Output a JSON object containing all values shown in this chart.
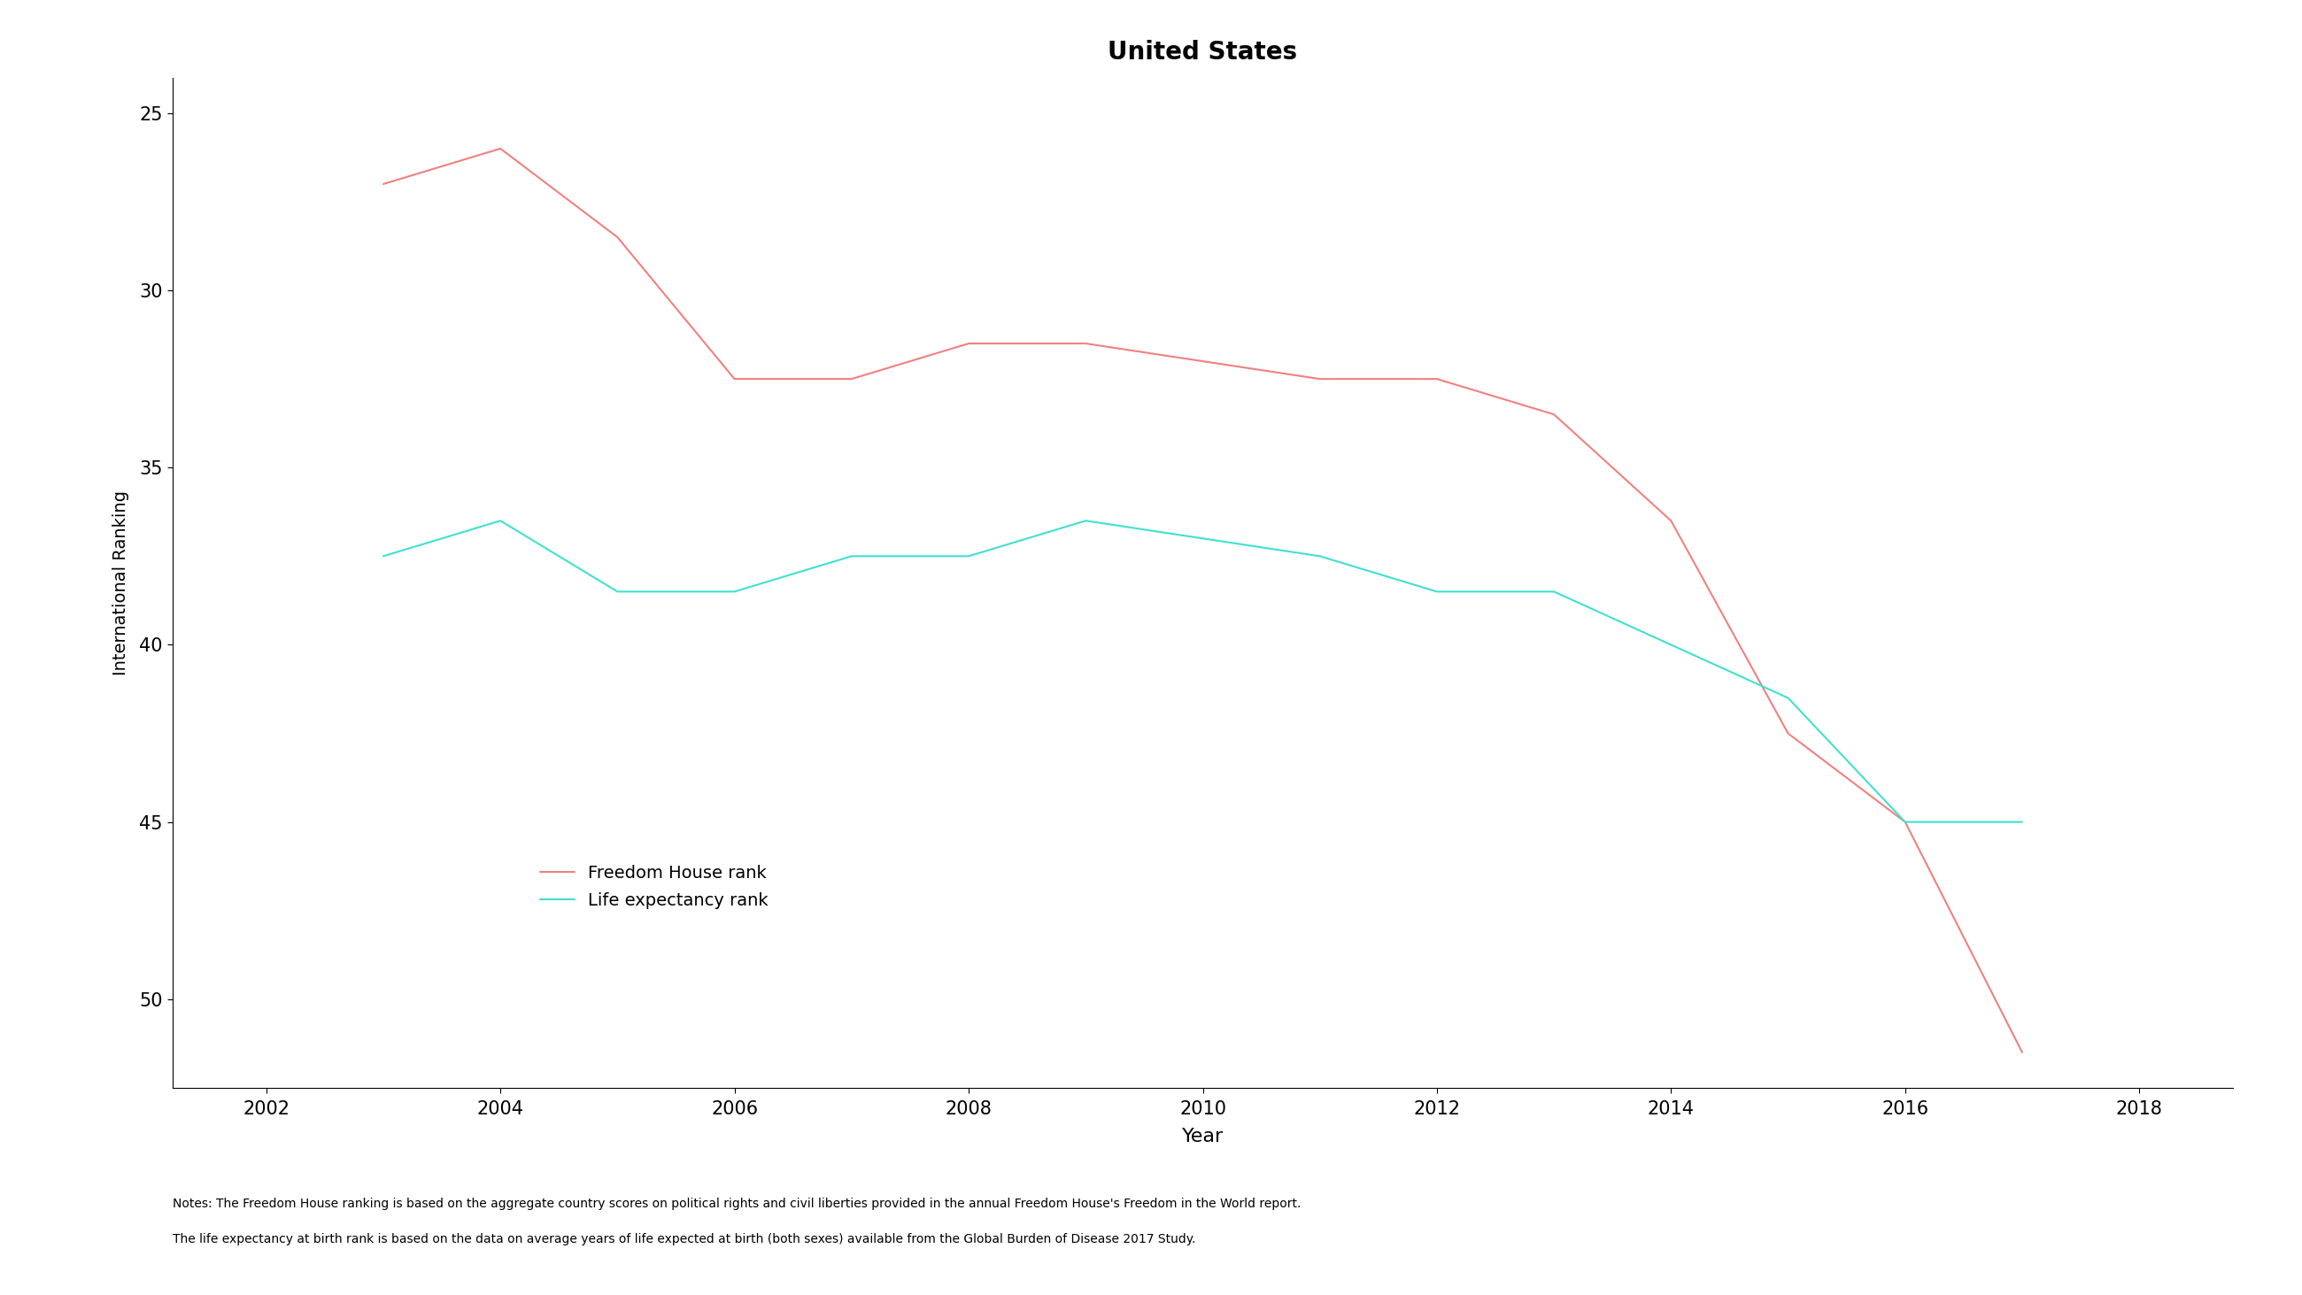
{
  "title": "United States",
  "xlabel": "Year",
  "ylabel": "International Ranking",
  "freedom_house": {
    "years": [
      2003,
      2004,
      2005,
      2006,
      2007,
      2008,
      2009,
      2010,
      2011,
      2012,
      2013,
      2014,
      2015,
      2016,
      2017
    ],
    "values": [
      27.0,
      26.0,
      28.5,
      32.5,
      32.5,
      31.5,
      31.5,
      32.0,
      32.5,
      32.5,
      33.5,
      36.5,
      42.5,
      45.0,
      51.5
    ]
  },
  "life_expectancy": {
    "years": [
      2003,
      2004,
      2005,
      2006,
      2007,
      2008,
      2009,
      2010,
      2011,
      2012,
      2013,
      2014,
      2015,
      2016,
      2017
    ],
    "values": [
      37.5,
      36.5,
      38.5,
      38.5,
      37.5,
      37.5,
      36.5,
      37.0,
      37.5,
      38.5,
      38.5,
      40.0,
      41.5,
      45.0,
      45.0
    ]
  },
  "freedom_house_color": "#F08080",
  "life_expectancy_color": "#40E0D0",
  "ylim_top": 24.0,
  "ylim_bottom": 52.5,
  "xlim_min": 2001.2,
  "xlim_max": 2018.8,
  "yticks": [
    25,
    30,
    35,
    40,
    45,
    50
  ],
  "xticks": [
    2002,
    2004,
    2006,
    2008,
    2010,
    2012,
    2014,
    2016,
    2018
  ],
  "legend_freedom": "Freedom House rank",
  "legend_life": "Life expectancy rank",
  "footnote1": "Notes: The Freedom House ranking is based on the aggregate country scores on political rights and civil liberties provided in the annual Freedom House's Freedom in the World report.",
  "footnote2": "The life expectancy at birth rank is based on the data on average years of life expected at birth (both sexes) available from the Global Burden of Disease 2017 Study.",
  "background_color": "#ffffff",
  "line_width": 1.5
}
